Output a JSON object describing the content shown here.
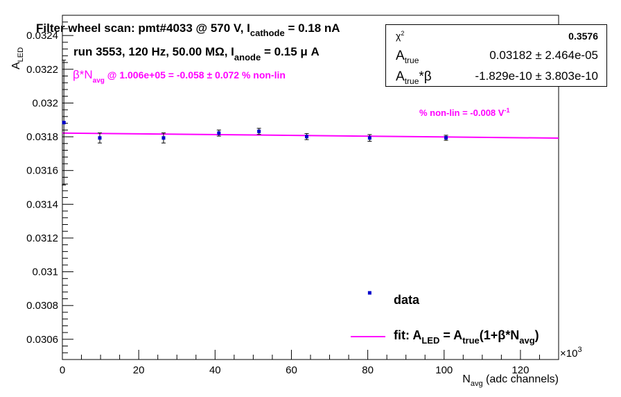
{
  "title": {
    "line1_pre": "Filter wheel scan: pmt#4033 @   570 V, I",
    "line1_sub": "cathode",
    "line1_post": " = 0.18 nA",
    "line2_pre": "run 3553, 120 Hz, 50.00 MΩ, I",
    "line2_sub": "anode",
    "line2_post": " = 0.15 μ A"
  },
  "annotations": {
    "beta_pre": "β*N",
    "beta_sub": "avg",
    "beta_post": " @ 1.006e+05 = -0.058 ± 0.072 % non-lin",
    "nonlin_pre": "% non-lin = -0.008 V",
    "nonlin_sup": "-1"
  },
  "stats": {
    "chi2_name": "χ",
    "chi2_sup": "2",
    "chi2_value": "0.3576",
    "atrue_name": "A",
    "atrue_sub": "true",
    "atrue_value": "0.03182 ± 2.464e-05",
    "beta_name_a": "A",
    "beta_name_sub": "true",
    "beta_name_b": "*β",
    "beta_value": "-1.829e-10 ± 3.803e-10"
  },
  "legend": {
    "data_label": "data",
    "fit_pre": "fit: A",
    "fit_sub1": "LED",
    "fit_mid": " = A",
    "fit_sub2": "true",
    "fit_post": "(1+β*N",
    "fit_sub3": "avg",
    "fit_end": ")"
  },
  "colors": {
    "data": "#0000cc",
    "fit": "#ff00ff",
    "annotation": "#ff00ff",
    "axis": "#000000"
  },
  "chart_data": {
    "type": "scatter",
    "xlabel_pre": "N",
    "xlabel_sub": "avg",
    "xlabel_post": " (adc channels)",
    "ylabel_pre": "A",
    "ylabel_sub": "LED",
    "x_exponent_label": "×10",
    "x_exponent_sup": "3",
    "x_scale": 1000,
    "xlim": [
      0,
      130000
    ],
    "ylim": [
      0.03048,
      0.03252
    ],
    "x_ticks": [
      0,
      20000,
      40000,
      60000,
      80000,
      100000,
      120000
    ],
    "x_tick_labels": [
      "0",
      "20",
      "40",
      "60",
      "80",
      "100",
      "120"
    ],
    "y_ticks": [
      0.0306,
      0.0308,
      0.031,
      0.0312,
      0.0314,
      0.0316,
      0.0318,
      0.032,
      0.0322,
      0.0324
    ],
    "y_tick_labels": [
      "0.0306",
      "0.0308",
      "0.031",
      "0.0312",
      "0.0314",
      "0.0316",
      "0.0318",
      "0.032",
      "0.0322",
      "0.0324"
    ],
    "series": [
      {
        "name": "data",
        "points": [
          {
            "x": 400,
            "y": 0.031884,
            "yerr": 0.00037
          },
          {
            "x": 9800,
            "y": 0.031793,
            "yerr": 3e-05
          },
          {
            "x": 26500,
            "y": 0.031793,
            "yerr": 3e-05
          },
          {
            "x": 41000,
            "y": 0.031822,
            "yerr": 1.8e-05
          },
          {
            "x": 51500,
            "y": 0.031832,
            "yerr": 1.8e-05
          },
          {
            "x": 64000,
            "y": 0.031801,
            "yerr": 1.8e-05
          },
          {
            "x": 80500,
            "y": 0.031793,
            "yerr": 2e-05
          },
          {
            "x": 100500,
            "y": 0.031794,
            "yerr": 1.5e-05
          }
        ]
      },
      {
        "name": "fit",
        "points": [
          {
            "x": 0,
            "y": 0.031822
          },
          {
            "x": 130000,
            "y": 0.031792
          }
        ]
      }
    ],
    "legend_marker_point": {
      "x": 80500,
      "y": 0.030875
    }
  }
}
